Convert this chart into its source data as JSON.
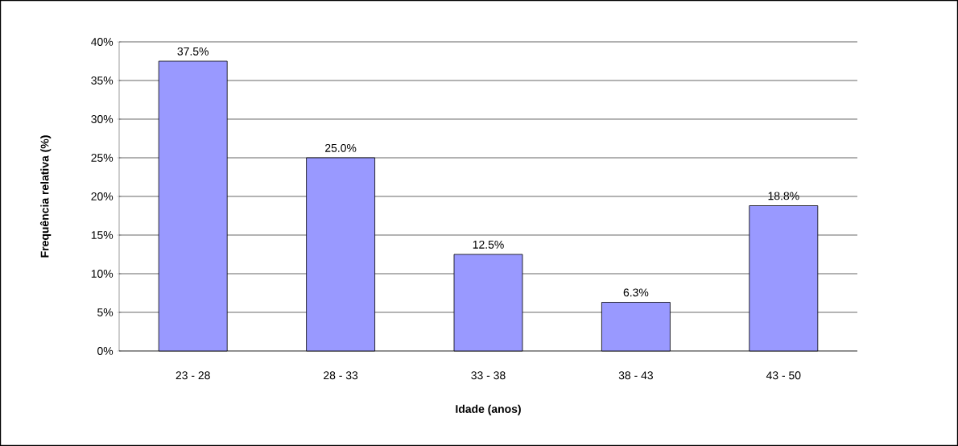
{
  "chart_data": {
    "type": "bar",
    "xlabel": "Idade (anos)",
    "ylabel": "Frequência relativa (%)",
    "categories": [
      "23 - 28",
      "28 - 33",
      "33 - 38",
      "38 - 43",
      "43 - 50"
    ],
    "values": [
      37.5,
      25.0,
      12.5,
      6.3,
      18.8
    ],
    "value_labels": [
      "37.5%",
      "25.0%",
      "12.5%",
      "6.3%",
      "18.8%"
    ],
    "color": "#9999ff",
    "ylim": [
      0,
      40
    ],
    "yticks": [
      {
        "value": 0,
        "label": "0%"
      },
      {
        "value": 5,
        "label": "5%"
      },
      {
        "value": 10,
        "label": "10%"
      },
      {
        "value": 15,
        "label": "15%"
      },
      {
        "value": 20,
        "label": "20%"
      },
      {
        "value": 25,
        "label": "25%"
      },
      {
        "value": 30,
        "label": "30%"
      },
      {
        "value": 35,
        "label": "35%"
      },
      {
        "value": 40,
        "label": "40%"
      }
    ],
    "grid": "y"
  }
}
